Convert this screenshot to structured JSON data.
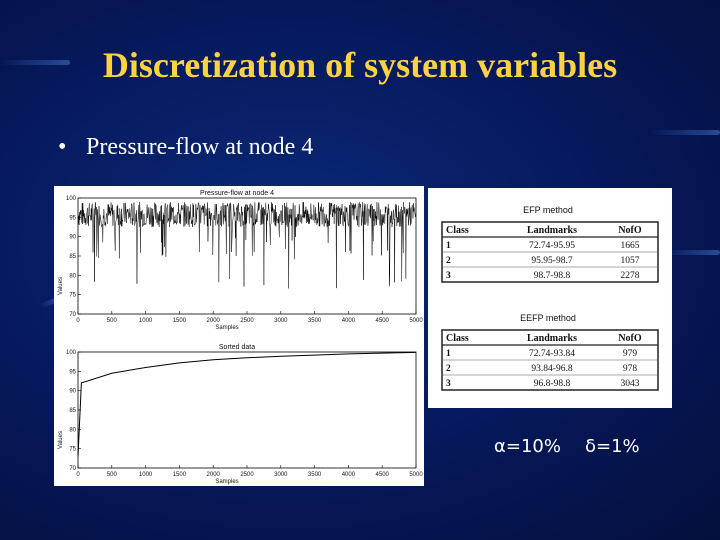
{
  "slide": {
    "title": "Discretization of system variables",
    "bullet_marker": "•",
    "bullet": "Pressure-flow at node 4",
    "alpha": "α=10%",
    "delta": "δ=1%"
  },
  "colors": {
    "background": "#06185a",
    "title": "#ffd23f",
    "text": "#ffffff"
  },
  "figure": {
    "top_plot": {
      "title": "Pressure-flow at node 4",
      "xlabel": "Samples",
      "ylabel": "Values"
    },
    "bottom_plot": {
      "title": "Sorted data",
      "xlabel": "Samples",
      "ylabel": "Values"
    },
    "x_ticks": [
      "0",
      "500",
      "1000",
      "1500",
      "2000",
      "2500",
      "3000",
      "3500",
      "4000",
      "4500",
      "5000"
    ],
    "y_ticks": [
      "70",
      "75",
      "80",
      "85",
      "90",
      "95",
      "100"
    ]
  },
  "chart_data": [
    {
      "type": "line",
      "title": "Pressure-flow at node 4",
      "xlabel": "Samples",
      "ylabel": "Values",
      "xlim": [
        0,
        5000
      ],
      "ylim": [
        70,
        100
      ],
      "description_series": "noisy signal mostly between 92 and 99 with occasional downward spikes to about 76"
    },
    {
      "type": "line",
      "title": "Sorted data",
      "xlabel": "Samples",
      "ylabel": "Values",
      "xlim": [
        0,
        5000
      ],
      "ylim": [
        70,
        100
      ],
      "x": [
        0,
        50,
        500,
        1000,
        1500,
        2000,
        2500,
        3000,
        3500,
        4000,
        4500,
        5000
      ],
      "y": [
        73,
        92,
        94.5,
        96,
        97.2,
        98,
        98.5,
        98.9,
        99.2,
        99.5,
        99.7,
        99.9
      ]
    }
  ],
  "tables": [
    {
      "title": "EFP method",
      "headers": [
        "Class",
        "Landmarks",
        "NofO"
      ],
      "rows": [
        [
          "1",
          "72.74-95.95",
          "1665"
        ],
        [
          "2",
          "95.95-98.7",
          "1057"
        ],
        [
          "3",
          "98.7-98.8",
          "2278"
        ]
      ]
    },
    {
      "title": "EEFP method",
      "headers": [
        "Class",
        "Landmarks",
        "NofO"
      ],
      "rows": [
        [
          "1",
          "72.74-93.84",
          "979"
        ],
        [
          "2",
          "93.84-96.8",
          "978"
        ],
        [
          "3",
          "96.8-98.8",
          "3043"
        ]
      ]
    }
  ]
}
